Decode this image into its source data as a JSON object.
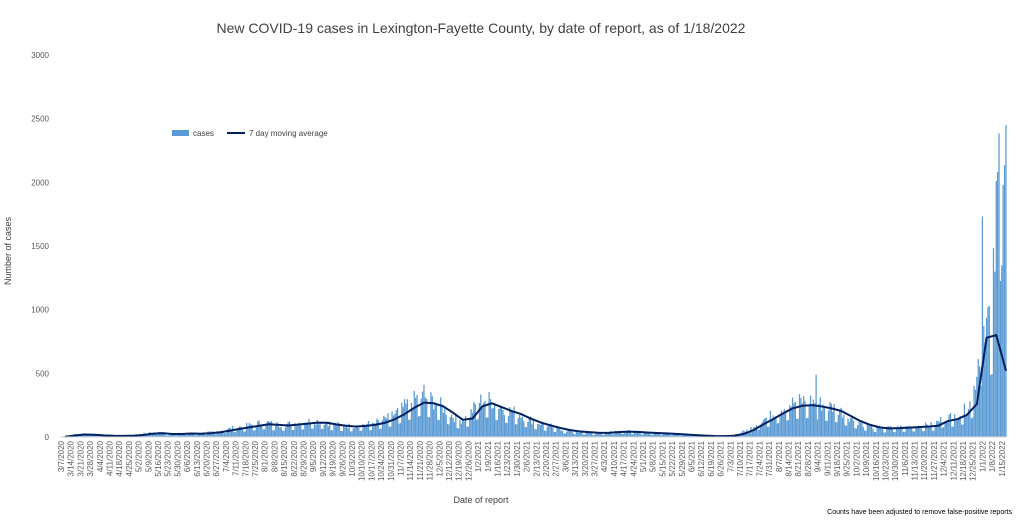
{
  "chart_data": {
    "type": "bar",
    "title": "New COVID-19 cases in Lexington-Fayette County, by date of report, as of 1/18/2022",
    "xlabel": "Date of report",
    "ylabel": "Number of cases",
    "ylim": [
      0,
      3000
    ],
    "yticks": [
      0,
      500,
      1000,
      1500,
      2000,
      2500,
      3000
    ],
    "grid": false,
    "legend_position": "top-left",
    "footnote": "Counts have been adjusted to remove false-positive reports",
    "x_start": "3/7/2020",
    "x_end": "1/18/2022",
    "x_tick_labels": [
      "3/7/2020",
      "3/14/2020",
      "3/21/2020",
      "3/28/2020",
      "4/4/2020",
      "4/11/2020",
      "4/18/2020",
      "4/25/2020",
      "5/2/2020",
      "5/9/2020",
      "5/16/2020",
      "5/23/2020",
      "5/30/2020",
      "6/6/2020",
      "6/13/2020",
      "6/20/2020",
      "6/27/2020",
      "7/4/2020",
      "7/11/2020",
      "7/18/2020",
      "7/25/2020",
      "8/1/2020",
      "8/8/2020",
      "8/15/2020",
      "8/22/2020",
      "8/29/2020",
      "9/5/2020",
      "9/12/2020",
      "9/19/2020",
      "9/26/2020",
      "10/3/2020",
      "10/10/2020",
      "10/17/2020",
      "10/24/2020",
      "10/31/2020",
      "11/7/2020",
      "11/14/2020",
      "11/21/2020",
      "11/28/2020",
      "12/5/2020",
      "12/12/2020",
      "12/19/2020",
      "12/26/2020",
      "1/2/2021",
      "1/9/2021",
      "1/16/2021",
      "1/23/2021",
      "1/30/2021",
      "2/6/2021",
      "2/13/2021",
      "2/20/2021",
      "2/27/2021",
      "3/6/2021",
      "3/13/2021",
      "3/20/2021",
      "3/27/2021",
      "4/3/2021",
      "4/10/2021",
      "4/17/2021",
      "4/24/2021",
      "5/1/2021",
      "5/8/2021",
      "5/15/2021",
      "5/22/2021",
      "5/29/2021",
      "6/5/2021",
      "6/12/2021",
      "6/19/2021",
      "6/26/2021",
      "7/3/2021",
      "7/10/2021",
      "7/17/2021",
      "7/24/2021",
      "7/31/2021",
      "8/7/2021",
      "8/14/2021",
      "8/21/2021",
      "8/28/2021",
      "9/4/2021",
      "9/11/2021",
      "9/18/2021",
      "9/25/2021",
      "10/2/2021",
      "10/9/2021",
      "10/16/2021",
      "10/23/2021",
      "10/30/2021",
      "11/6/2021",
      "11/13/2021",
      "11/20/2021",
      "11/27/2021",
      "12/4/2021",
      "12/11/2021",
      "12/18/2021",
      "12/25/2021",
      "1/1/2022",
      "1/8/2022",
      "1/15/2022"
    ],
    "series": [
      {
        "name": "cases",
        "color": "#5b9bd5",
        "weekly_representative_values": [
          2,
          15,
          25,
          20,
          12,
          10,
          8,
          10,
          20,
          30,
          35,
          20,
          25,
          28,
          25,
          30,
          40,
          55,
          70,
          80,
          95,
          110,
          95,
          90,
          100,
          110,
          120,
          115,
          95,
          85,
          80,
          90,
          100,
          120,
          150,
          200,
          250,
          300,
          280,
          240,
          180,
          120,
          150,
          260,
          280,
          240,
          200,
          180,
          140,
          110,
          90,
          70,
          50,
          40,
          35,
          30,
          30,
          40,
          45,
          40,
          35,
          30,
          28,
          25,
          20,
          15,
          10,
          8,
          6,
          10,
          30,
          60,
          110,
          150,
          200,
          240,
          260,
          270,
          250,
          230,
          210,
          160,
          120,
          90,
          70,
          65,
          70,
          75,
          80,
          85,
          90,
          140,
          150,
          180,
          280,
          800,
          900,
          2450
        ],
        "peaks": [
          {
            "date": "11/24/2020",
            "value": 410
          },
          {
            "date": "9/3/2021",
            "value": 490
          },
          {
            "date": "1/1/2022",
            "value": 1730
          },
          {
            "date": "1/18/2022",
            "value": 2450
          }
        ]
      },
      {
        "name": "7 day moving average",
        "color": "#002060",
        "weekly_values": [
          2,
          12,
          20,
          18,
          13,
          10,
          9,
          10,
          16,
          26,
          30,
          24,
          24,
          27,
          26,
          29,
          37,
          50,
          64,
          76,
          88,
          100,
          95,
          90,
          97,
          105,
          113,
          112,
          98,
          88,
          82,
          87,
          96,
          112,
          140,
          180,
          230,
          270,
          265,
          240,
          190,
          135,
          145,
          240,
          265,
          235,
          205,
          180,
          145,
          115,
          92,
          72,
          55,
          44,
          38,
          33,
          32,
          38,
          42,
          40,
          35,
          31,
          28,
          25,
          20,
          15,
          11,
          8,
          7,
          10,
          25,
          55,
          100,
          140,
          185,
          225,
          245,
          250,
          240,
          225,
          205,
          165,
          125,
          95,
          75,
          68,
          70,
          74,
          78,
          82,
          88,
          125,
          140,
          175,
          260,
          780,
          800,
          520
        ]
      }
    ]
  }
}
